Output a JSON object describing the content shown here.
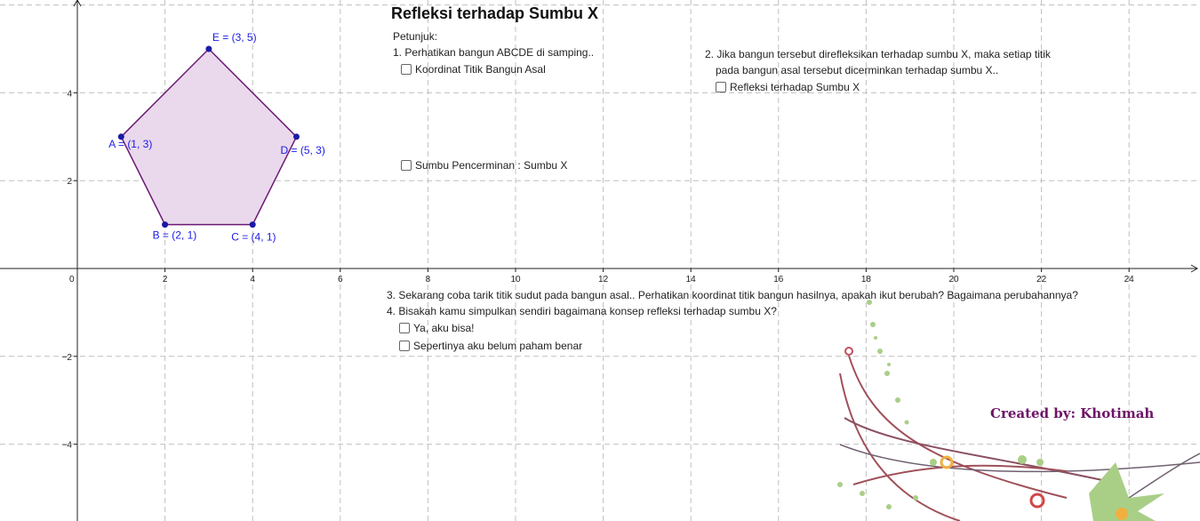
{
  "title": "Refleksi terhadap Sumbu X",
  "instructions": {
    "heading": "Petunjuk:",
    "step1": "1. Perhatikan bangun ABCDE di samping..",
    "step2_line1": "2. Jika bangun tersebut direfleksikan terhadap sumbu X, maka setiap titik",
    "step2_line2": "pada bangun asal tersebut dicerminkan terhadap sumbu X..",
    "step3": "3. Sekarang coba tarik titik sudut pada bangun asal.. Perhatikan koordinat titik bangun hasilnya, apakah ikut berubah? Bagaimana perubahannya?",
    "step4": "4. Bisakah kamu simpulkan sendiri bagaimana konsep refleksi terhadap sumbu X?"
  },
  "checkboxes": {
    "koordinat": {
      "label": "Koordinat Titik Bangun Asal",
      "checked": false
    },
    "sumbu": {
      "label": "Sumbu Pencerminan : Sumbu X",
      "checked": false
    },
    "refleksi": {
      "label": "Refleksi terhadap Sumbu X",
      "checked": false
    },
    "bisa": {
      "label": "Ya, aku bisa!",
      "checked": false
    },
    "belum": {
      "label": "Sepertinya aku belum paham benar",
      "checked": false
    }
  },
  "credit": "Created by: Khotimah",
  "axes": {
    "x_ticks": [
      0,
      2,
      4,
      6,
      8,
      10,
      12,
      14,
      16,
      18,
      20,
      22,
      24
    ],
    "y_ticks": [
      -4,
      -2,
      2,
      4
    ]
  },
  "polygon": {
    "fill": "#ead9ec",
    "stroke": "#6a1a73",
    "point_color": "#1a1aa6",
    "label_color": "#1a1ae6",
    "points": [
      {
        "name": "A",
        "x": 1,
        "y": 3,
        "label": "A = (1, 3)"
      },
      {
        "name": "B",
        "x": 2,
        "y": 1,
        "label": "B = (2, 1)"
      },
      {
        "name": "C",
        "x": 4,
        "y": 1,
        "label": "C = (4, 1)"
      },
      {
        "name": "D",
        "x": 5,
        "y": 3,
        "label": "D = (5, 3)"
      },
      {
        "name": "E",
        "x": 3,
        "y": 5,
        "label": "E = (3, 5)"
      }
    ]
  }
}
